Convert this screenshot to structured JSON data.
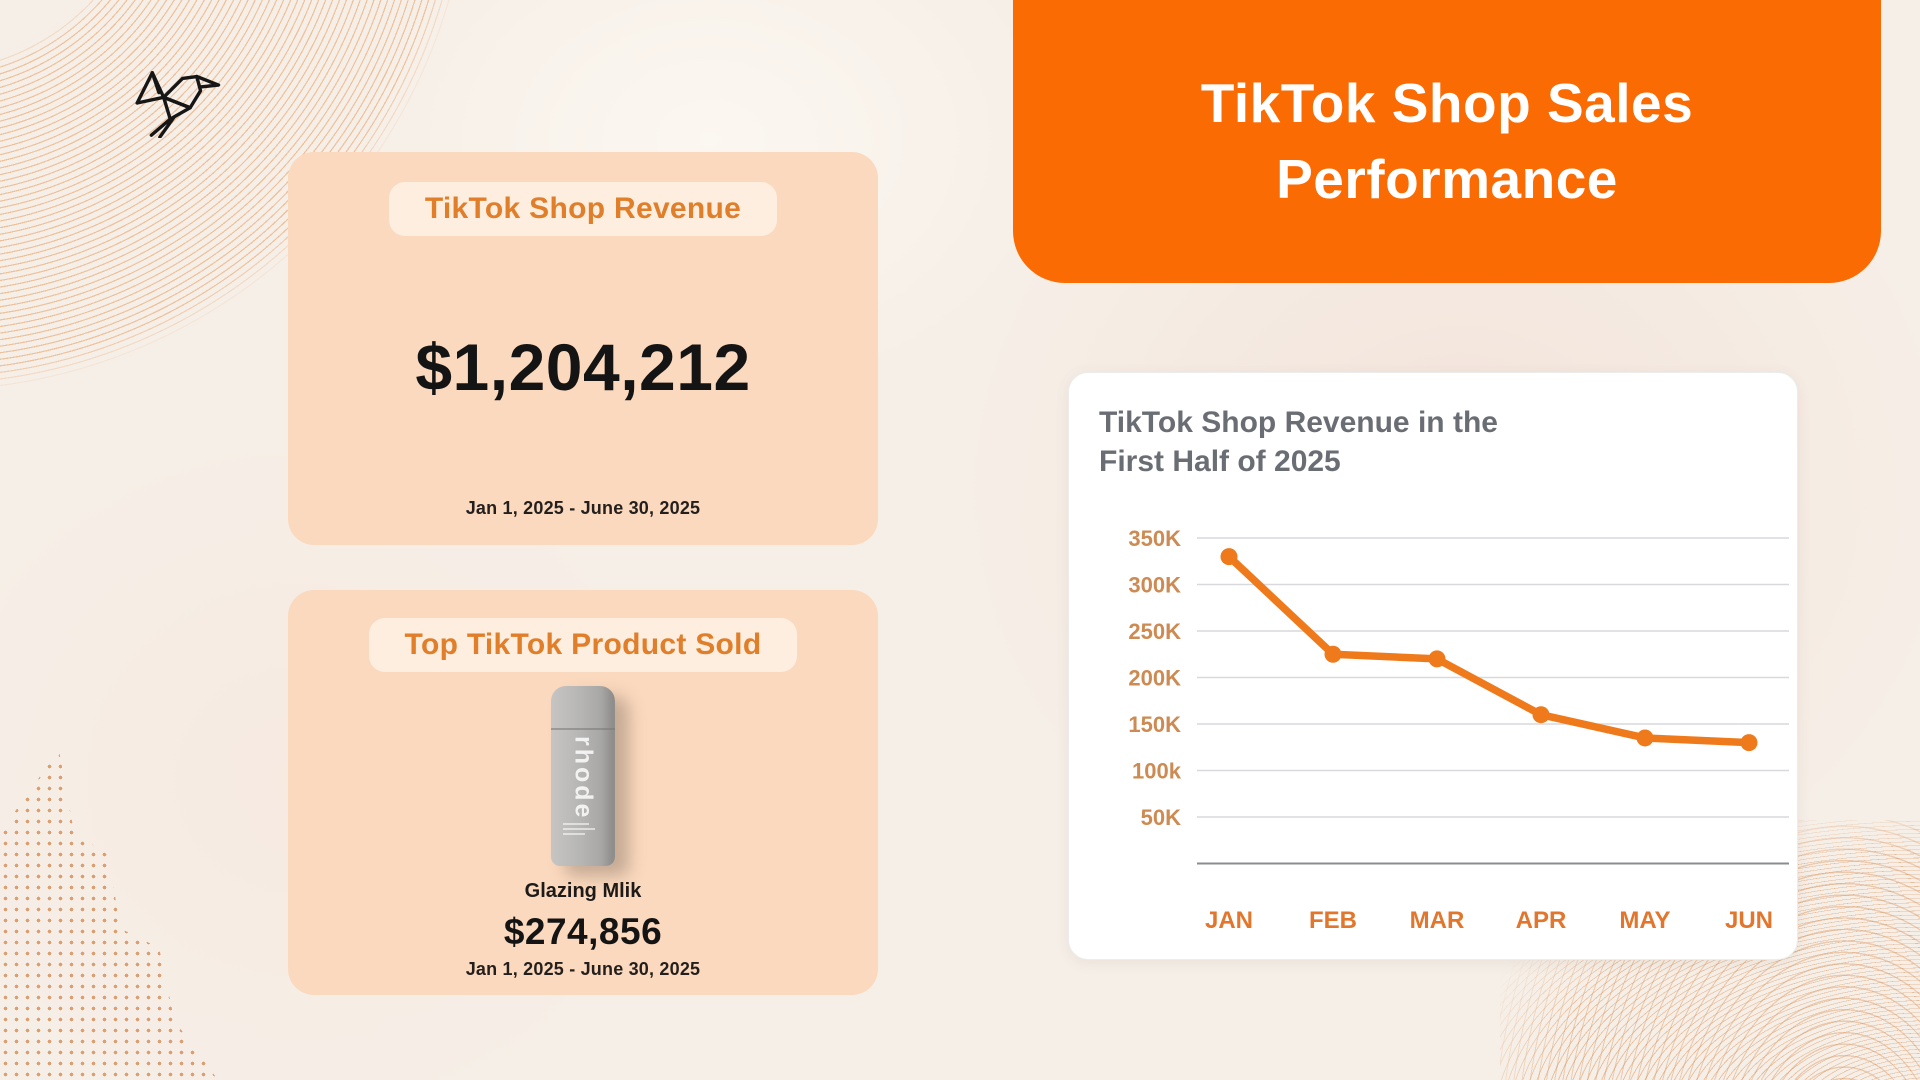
{
  "logo": {
    "name": "origami-hummingbird"
  },
  "header": {
    "title": "TikTok Shop Sales Performance"
  },
  "stats_cards": [
    {
      "badge": "TikTok Shop Revenue",
      "value": "$1,204,212",
      "period": "Jan 1, 2025 - June 30, 2025"
    },
    {
      "badge": "Top TikTok Product Sold",
      "product_brand": "rhode",
      "product_name": "Glazing Mlik",
      "value": "$274,856",
      "period": "Jan 1, 2025 - June 30, 2025"
    }
  ],
  "chart_data": {
    "type": "line",
    "title": "TikTok Shop Revenue in the First Half of 2025",
    "categories": [
      "JAN",
      "FEB",
      "MAR",
      "APR",
      "MAY",
      "JUN"
    ],
    "series": [
      {
        "name": "TikTok Shop Revenue",
        "values": [
          330000,
          225000,
          220000,
          160000,
          135000,
          130000
        ]
      }
    ],
    "ytick_labels": [
      "350K",
      "300K",
      "250K",
      "200K",
      "150K",
      "100k",
      "50K"
    ],
    "ytick_values": [
      350000,
      300000,
      250000,
      200000,
      150000,
      100000,
      50000
    ],
    "ylim": [
      0,
      350000
    ],
    "grid": true,
    "legend": "none",
    "line_color": "#EF7A1C",
    "marker": "circle"
  },
  "colors": {
    "header-bg": "#FB6B03",
    "header-text": "#FFFFFF",
    "card-bg": "#FBD9BE",
    "pill-bg": "#FDEEDF",
    "pill-text": "#E07E2A",
    "value-text": "#141414",
    "chart-title": "#6A6E74",
    "ytick": "#CD8A52",
    "xlabel": "#E2762C",
    "grid-line": "#D9D9DD",
    "axis-line": "#8A8C90",
    "page-bg": "#F6EFE7",
    "deco-orange": "#E39A62"
  }
}
